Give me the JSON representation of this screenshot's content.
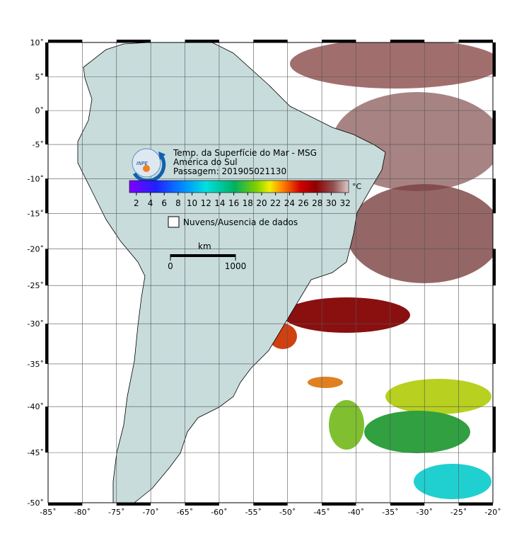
{
  "map": {
    "title": "Temp. da Superfície do Mar - MSG",
    "region": "América do Sul",
    "pass": "Passagem: 201905021130",
    "logo": "INPE",
    "colorbar": {
      "unit": "°C",
      "lim": [
        1,
        32.5
      ],
      "ticks": [
        2,
        4,
        6,
        8,
        10,
        12,
        14,
        16,
        18,
        20,
        22,
        24,
        26,
        28,
        30,
        32
      ]
    },
    "legend": "Nuvens/Ausencia de dados",
    "scale_bar": {
      "unit": "km",
      "ticks": [
        0,
        1000
      ]
    },
    "xlim": [
      -85,
      -20
    ],
    "ylim": [
      -50,
      10
    ],
    "xticks": [
      {
        "value": -85,
        "label": "-85˚"
      },
      {
        "value": -80,
        "label": "-80˚"
      },
      {
        "value": -75,
        "label": "-75˚"
      },
      {
        "value": -70,
        "label": "-70˚"
      },
      {
        "value": -65,
        "label": "-65˚"
      },
      {
        "value": -60,
        "label": "-60˚"
      },
      {
        "value": -55,
        "label": "-55˚"
      },
      {
        "value": -50,
        "label": "-50˚"
      },
      {
        "value": -45,
        "label": "-45˚"
      },
      {
        "value": -40,
        "label": "-40˚"
      },
      {
        "value": -35,
        "label": "-35˚"
      },
      {
        "value": -30,
        "label": "-30˚"
      },
      {
        "value": -25,
        "label": "-25˚"
      },
      {
        "value": -20,
        "label": "-20˚"
      }
    ],
    "yticks": [
      {
        "value": 10,
        "label": "10˚"
      },
      {
        "value": 5,
        "label": "5˚"
      },
      {
        "value": 0,
        "label": "0˚"
      },
      {
        "value": -5,
        "label": "-5˚"
      },
      {
        "value": -10,
        "label": "-10˚"
      },
      {
        "value": -15,
        "label": "-15˚"
      },
      {
        "value": -20,
        "label": "-20˚"
      },
      {
        "value": -25,
        "label": "-25˚"
      },
      {
        "value": -30,
        "label": "-30˚"
      },
      {
        "value": -35,
        "label": "-35˚"
      },
      {
        "value": -40,
        "label": "-40˚"
      },
      {
        "value": -45,
        "label": "-45˚"
      },
      {
        "value": -50,
        "label": "-50˚"
      }
    ]
  }
}
